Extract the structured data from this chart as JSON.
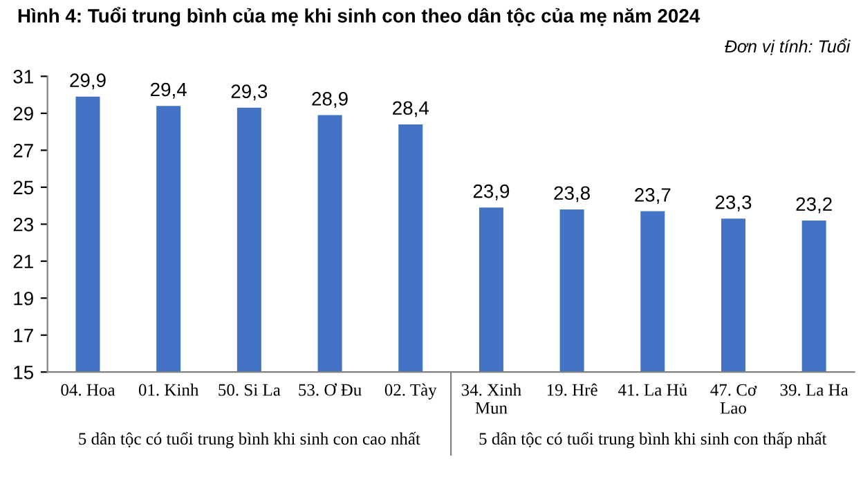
{
  "chart_data": {
    "type": "bar",
    "title": "Hình 4: Tuổi trung bình của mẹ khi sinh con theo dân tộc của mẹ năm 2024",
    "subtitle": "Đơn vị tính: Tuổi",
    "categories": [
      "04. Hoa",
      "01. Kinh",
      "50. Si La",
      "53. Ơ Đu",
      "02. Tày",
      "34. Xinh\nMun",
      "19. Hrê",
      "41. La Hủ",
      "47. Cơ\nLao",
      "39. La Ha"
    ],
    "values": [
      29.9,
      29.4,
      29.3,
      28.9,
      28.4,
      23.9,
      23.8,
      23.7,
      23.3,
      23.2
    ],
    "value_labels": [
      "29,9",
      "29,4",
      "29,3",
      "28,9",
      "28,4",
      "23,9",
      "23,8",
      "23,7",
      "23,3",
      "23,2"
    ],
    "color": "#4472c4",
    "ylim": [
      15,
      31
    ],
    "yticks": [
      15,
      17,
      19,
      21,
      23,
      25,
      27,
      29,
      31
    ],
    "grid": false,
    "annotations": [
      "5 dân tộc có tuổi trung bình khi sinh con cao nhất",
      "5 dân tộc có tuổi trung bình khi sinh con thấp nhất"
    ]
  }
}
